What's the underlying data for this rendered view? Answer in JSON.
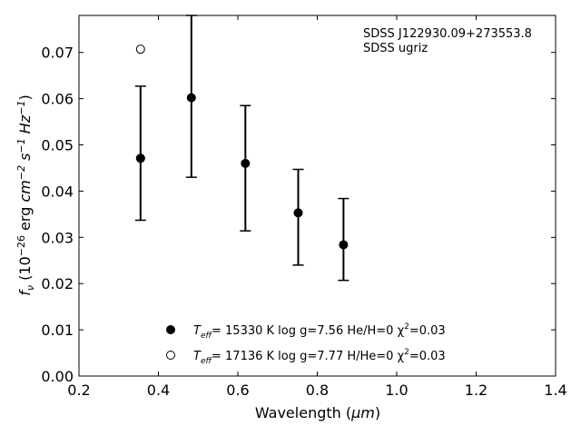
{
  "chart_data": {
    "type": "scatter",
    "xlabel": "Wavelength (μm)",
    "ylabel": "f_ν (10⁻²⁶ erg cm⁻² s⁻¹ Hz⁻¹)",
    "xlim": [
      0.2,
      1.4
    ],
    "ylim": [
      0.0,
      0.078
    ],
    "xticks": [
      0.2,
      0.4,
      0.6,
      0.8,
      1.0,
      1.2,
      1.4
    ],
    "yticks": [
      0.0,
      0.01,
      0.02,
      0.03,
      0.04,
      0.05,
      0.06,
      0.07
    ],
    "xtick_labels": [
      "0.2",
      "0.4",
      "0.6",
      "0.8",
      "1.0",
      "1.2",
      "1.4"
    ],
    "ytick_labels": [
      "0.00",
      "0.01",
      "0.02",
      "0.03",
      "0.04",
      "0.05",
      "0.06",
      "0.07"
    ],
    "annotations": [
      "SDSS J122930.09+273553.8",
      "SDSS ugriz"
    ],
    "grid": false,
    "legend_position": "bottom-center",
    "observed": {
      "x": [
        0.355,
        0.483,
        0.619,
        0.752,
        0.866
      ],
      "y": [
        0.0471,
        0.0602,
        0.046,
        0.0353,
        0.0284
      ],
      "err_low": [
        0.0337,
        0.043,
        0.0314,
        0.024,
        0.0207
      ],
      "err_high": [
        0.0627,
        0.078,
        0.0585,
        0.0447,
        0.0384
      ]
    },
    "series": [
      {
        "name": "Teff= 15330 K  log g=7.56  He/H=0  χ²=0.03",
        "marker": "filled-circle",
        "x": [
          0.355
        ],
        "y": [
          0.0471
        ]
      },
      {
        "name": "Teff= 17136 K  log g=7.77  H/He=0  χ²=0.03",
        "marker": "open-circle",
        "x": [
          0.355
        ],
        "y": [
          0.0707
        ]
      }
    ]
  },
  "legend": [
    {
      "sym": "T",
      "sub": "eff",
      "rest": "= 15330 K  log g=7.56  He/H=0  χ",
      "sup": "2",
      "tail": "=0.03"
    },
    {
      "sym": "T",
      "sub": "eff",
      "rest": "= 17136 K  log g=7.77  H/He=0  χ",
      "sup": "2",
      "tail": "=0.03"
    }
  ],
  "xlabel_parts": {
    "pre": "Wavelength (",
    "unit": "μm",
    "post": ")"
  },
  "ylabel_parts": {
    "f": "f",
    "nu": "ν",
    "open": " (10",
    "exp1": "−26",
    "erg": " erg ",
    "cm": "cm",
    "exp2": "−2",
    "s": " s",
    "exp3": "−1",
    "hz": " Hz",
    "exp4": "−1",
    "close": ")"
  }
}
